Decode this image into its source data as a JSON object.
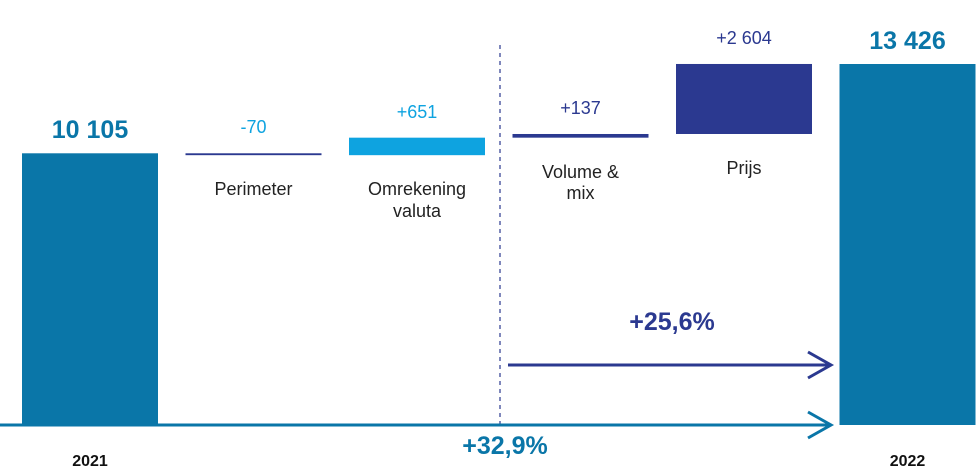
{
  "chart_data": {
    "type": "waterfall",
    "categories": [
      "2021",
      "Perimeter",
      "Omrekening valuta",
      "Volume & mix",
      "Prijs",
      "2022"
    ],
    "values": [
      10105,
      -70,
      651,
      137,
      2604,
      13426
    ],
    "value_labels": [
      "10 105",
      "-70",
      "+651",
      "+137",
      "+2 604",
      "13 426"
    ],
    "colors": [
      "#0a76a8",
      "#2b3990",
      "#0ea3e0",
      "#2b3990",
      "#2b3990",
      "#0a76a8"
    ],
    "annotations": [
      "+25,6%",
      "+32,9%"
    ]
  }
}
